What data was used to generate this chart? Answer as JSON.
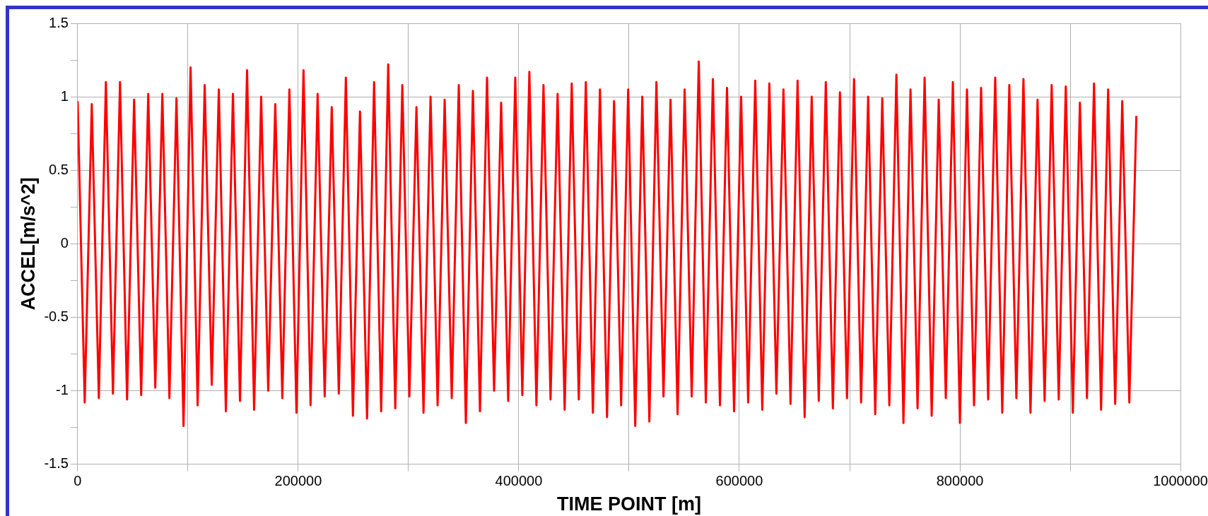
{
  "chart_data": {
    "type": "line",
    "xlabel": "TIME POINT [m]",
    "ylabel": "ACCEL[m/s^2]",
    "xlim": [
      0,
      1000000
    ],
    "xticks": [
      0,
      {
        "value": 100000,
        "label": null
      },
      200000,
      {
        "value": 300000,
        "label": null
      },
      400000,
      {
        "value": 500000,
        "label": null
      },
      600000,
      {
        "value": 700000,
        "label": null
      },
      800000,
      {
        "value": 900000,
        "label": null
      },
      1000000
    ],
    "ylim": [
      -1.5,
      1.5
    ],
    "yticks": [
      -1.5,
      {
        "value": -1.25,
        "label": null
      },
      -1,
      {
        "value": -0.75,
        "label": null
      },
      -0.5,
      {
        "value": -0.25,
        "label": null
      },
      0,
      {
        "value": 0.25,
        "label": null
      },
      0.5,
      {
        "value": 0.75,
        "label": null
      },
      1,
      {
        "value": 1.25,
        "label": null
      },
      1.5
    ],
    "grid": true,
    "marker": "none",
    "line_style": "solid",
    "series": [
      {
        "color": "#ff0000",
        "x": [
          0,
          6400,
          12800,
          19200,
          25600,
          32000,
          38400,
          44800,
          51200,
          57600,
          64000,
          70400,
          76800,
          83200,
          89600,
          96000,
          102400,
          108800,
          115200,
          121600,
          128000,
          134400,
          140800,
          147200,
          153600,
          160000,
          166400,
          172800,
          179200,
          185600,
          192000,
          198400,
          204800,
          211200,
          217600,
          224000,
          230400,
          236800,
          243200,
          249600,
          256000,
          262400,
          268800,
          275200,
          281600,
          288000,
          294400,
          300800,
          307200,
          313600,
          320000,
          326400,
          332800,
          339200,
          345600,
          352000,
          358400,
          364800,
          371200,
          377600,
          384000,
          390400,
          396800,
          403200,
          409600,
          416000,
          422400,
          428800,
          435200,
          441600,
          448000,
          454400,
          460800,
          467200,
          473600,
          480000,
          486400,
          492800,
          499200,
          505600,
          512000,
          518400,
          524800,
          531200,
          537600,
          544000,
          550400,
          556800,
          563200,
          569600,
          576000,
          582400,
          588800,
          595200,
          601600,
          608000,
          614400,
          620800,
          627200,
          633600,
          640000,
          646400,
          652800,
          659200,
          665600,
          672000,
          678400,
          684800,
          691200,
          697600,
          704000,
          710400,
          716800,
          723200,
          729600,
          736000,
          742400,
          748800,
          755200,
          761600,
          768000,
          774400,
          780800,
          787200,
          793600,
          800000,
          806400,
          812800,
          819200,
          825600,
          832000,
          838400,
          844800,
          851200,
          857600,
          864000,
          870400,
          876800,
          883200,
          889600,
          896000,
          902400,
          908800,
          915200,
          921600,
          928000,
          934400,
          940800,
          947200,
          953600,
          960000
        ],
        "values": [
          0.97,
          -1.08,
          0.95,
          -1.05,
          1.1,
          -1.02,
          1.1,
          -1.06,
          0.98,
          -1.03,
          1.02,
          -0.98,
          1.02,
          -1.05,
          0.99,
          -1.24,
          1.2,
          -1.1,
          1.08,
          -0.96,
          1.05,
          -1.14,
          1.02,
          -1.07,
          1.18,
          -1.13,
          1.0,
          -1.0,
          0.95,
          -1.05,
          1.05,
          -1.15,
          1.18,
          -1.1,
          1.02,
          -1.04,
          0.93,
          -1.02,
          1.13,
          -1.17,
          0.9,
          -1.19,
          1.1,
          -1.14,
          1.22,
          -1.12,
          1.08,
          -1.04,
          0.93,
          -1.15,
          1.0,
          -1.1,
          0.98,
          -1.05,
          1.08,
          -1.22,
          1.04,
          -1.14,
          1.13,
          -1.0,
          0.96,
          -1.07,
          1.13,
          -1.03,
          1.17,
          -1.1,
          1.08,
          -1.06,
          1.02,
          -1.13,
          1.09,
          -1.06,
          1.1,
          -1.15,
          1.05,
          -1.18,
          0.97,
          -1.1,
          1.05,
          -1.24,
          1.0,
          -1.21,
          1.1,
          -1.04,
          0.98,
          -1.16,
          1.05,
          -1.04,
          1.24,
          -1.08,
          1.12,
          -1.1,
          1.06,
          -1.14,
          1.0,
          -1.08,
          1.11,
          -1.13,
          1.09,
          -1.02,
          1.05,
          -1.09,
          1.11,
          -1.18,
          1.0,
          -1.07,
          1.1,
          -1.12,
          1.03,
          -1.05,
          1.12,
          -1.08,
          1.0,
          -1.16,
          0.99,
          -1.1,
          1.15,
          -1.22,
          1.05,
          -1.12,
          1.13,
          -1.17,
          0.98,
          -1.05,
          1.1,
          -1.22,
          1.05,
          -1.1,
          1.06,
          -1.06,
          1.13,
          -1.15,
          1.08,
          -1.05,
          1.12,
          -1.15,
          0.98,
          -1.07,
          1.08,
          -1.06,
          1.07,
          -1.15,
          0.96,
          -1.05,
          1.09,
          -1.13,
          1.05,
          -1.09,
          0.97,
          -1.08,
          0.87
        ]
      }
    ]
  }
}
